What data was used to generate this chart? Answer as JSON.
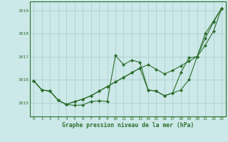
{
  "xlabel": "Graphe pression niveau de la mer (hPa)",
  "ylim": [
    1014.4,
    1019.4
  ],
  "xlim": [
    -0.5,
    23.5
  ],
  "yticks": [
    1015,
    1016,
    1017,
    1018,
    1019
  ],
  "xticks": [
    0,
    1,
    2,
    3,
    4,
    5,
    6,
    7,
    8,
    9,
    10,
    11,
    12,
    13,
    14,
    15,
    16,
    17,
    18,
    19,
    20,
    21,
    22,
    23
  ],
  "bg_color": "#cce8e8",
  "grid_color": "#aacccc",
  "line_color": "#2d6e2d",
  "marker": "D",
  "markersize": 2.0,
  "linewidth": 0.8,
  "series": [
    [
      1015.95,
      1015.55,
      1015.5,
      1015.1,
      1014.92,
      1014.88,
      1014.9,
      1015.05,
      1015.08,
      1015.05,
      1017.05,
      1016.65,
      1016.85,
      1016.75,
      1015.55,
      1015.5,
      1015.3,
      1015.42,
      1015.55,
      1016.0,
      1017.0,
      1018.0,
      1018.55,
      1019.1
    ],
    [
      1015.95,
      1015.55,
      1015.5,
      1015.1,
      1014.92,
      1015.05,
      1015.15,
      1015.3,
      1015.5,
      1015.7,
      1015.9,
      1016.1,
      1016.3,
      1016.5,
      1016.65,
      1016.45,
      1016.25,
      1016.4,
      1016.6,
      1016.8,
      1017.0,
      1017.8,
      1018.5,
      1019.1
    ],
    [
      1015.95,
      1015.55,
      1015.5,
      1015.1,
      1014.92,
      1015.05,
      1015.15,
      1015.3,
      1015.5,
      1015.7,
      1015.9,
      1016.1,
      1016.3,
      1016.5,
      1015.55,
      1015.5,
      1015.3,
      1015.42,
      1016.3,
      1016.95,
      1017.0,
      1017.5,
      1018.1,
      1019.1
    ]
  ]
}
